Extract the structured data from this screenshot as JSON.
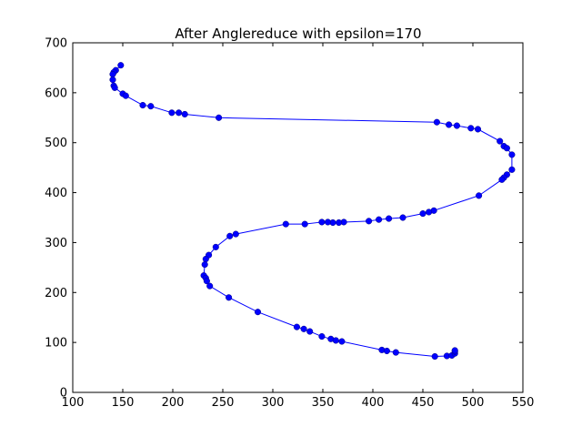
{
  "chart_data": {
    "type": "line",
    "title": "After Anglereduce with epsilon=170",
    "xlabel": "",
    "ylabel": "",
    "xlim": [
      100,
      550
    ],
    "ylim": [
      0,
      700
    ],
    "x_ticks": [
      100,
      150,
      200,
      250,
      300,
      350,
      400,
      450,
      500,
      550
    ],
    "y_ticks": [
      0,
      100,
      200,
      300,
      400,
      500,
      600,
      700
    ],
    "grid": false,
    "legend": "none",
    "series_color": "#0000ff",
    "marker": "circle",
    "series": [
      {
        "points": [
          [
            148,
            655
          ],
          [
            143,
            645
          ],
          [
            141,
            641
          ],
          [
            140,
            637
          ],
          [
            140,
            626
          ],
          [
            141,
            614
          ],
          [
            142,
            610
          ],
          [
            150,
            598
          ],
          [
            153,
            594
          ],
          [
            170,
            575
          ],
          [
            178,
            573
          ],
          [
            199,
            560
          ],
          [
            206,
            560
          ],
          [
            212,
            557
          ],
          [
            246,
            550
          ],
          [
            464,
            541
          ],
          [
            476,
            536
          ],
          [
            484,
            534
          ],
          [
            498,
            529
          ],
          [
            505,
            527
          ],
          [
            527,
            503
          ],
          [
            531,
            493
          ],
          [
            534,
            489
          ],
          [
            539,
            476
          ],
          [
            539,
            446
          ],
          [
            534,
            436
          ],
          [
            531,
            430
          ],
          [
            529,
            426
          ],
          [
            506,
            394
          ],
          [
            461,
            364
          ],
          [
            456,
            361
          ],
          [
            450,
            358
          ],
          [
            430,
            350
          ],
          [
            416,
            348
          ],
          [
            406,
            346
          ],
          [
            396,
            343
          ],
          [
            371,
            341
          ],
          [
            366,
            340
          ],
          [
            360,
            340
          ],
          [
            355,
            341
          ],
          [
            349,
            341
          ],
          [
            332,
            337
          ],
          [
            313,
            337
          ],
          [
            263,
            317
          ],
          [
            257,
            313
          ],
          [
            243,
            291
          ],
          [
            236,
            275
          ],
          [
            233,
            267
          ],
          [
            232,
            256
          ],
          [
            231,
            234
          ],
          [
            233,
            229
          ],
          [
            234,
            223
          ],
          [
            237,
            213
          ],
          [
            256,
            190
          ],
          [
            285,
            161
          ],
          [
            324,
            131
          ],
          [
            331,
            127
          ],
          [
            337,
            122
          ],
          [
            349,
            112
          ],
          [
            358,
            107
          ],
          [
            363,
            104
          ],
          [
            369,
            102
          ],
          [
            409,
            85
          ],
          [
            414,
            83
          ],
          [
            423,
            80
          ],
          [
            462,
            72
          ],
          [
            474,
            73
          ],
          [
            479,
            74
          ],
          [
            482,
            78
          ],
          [
            482,
            82
          ],
          [
            482,
            84
          ]
        ]
      }
    ]
  }
}
